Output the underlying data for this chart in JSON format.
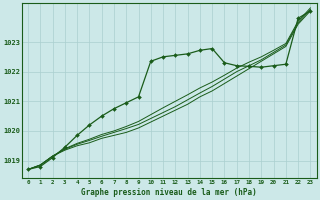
{
  "title": "Graphe pression niveau de la mer (hPa)",
  "bg_color": "#cce8e8",
  "grid_color": "#aacfcf",
  "line_color": "#1a5c1a",
  "x_ticks": [
    0,
    1,
    2,
    3,
    4,
    5,
    6,
    7,
    8,
    9,
    10,
    11,
    12,
    13,
    14,
    15,
    16,
    17,
    18,
    19,
    20,
    21,
    22,
    23
  ],
  "ylim": [
    1018.4,
    1024.3
  ],
  "yticks": [
    1019,
    1020,
    1021,
    1022,
    1023
  ],
  "series_plain": [
    [
      1018.7,
      1018.85,
      1019.15,
      1019.35,
      1019.5,
      1019.6,
      1019.75,
      1019.85,
      1019.95,
      1020.1,
      1020.3,
      1020.5,
      1020.7,
      1020.9,
      1021.15,
      1021.35,
      1021.6,
      1021.85,
      1022.1,
      1022.35,
      1022.6,
      1022.85,
      1023.6,
      1024.05
    ],
    [
      1018.7,
      1018.85,
      1019.15,
      1019.38,
      1019.55,
      1019.68,
      1019.82,
      1019.95,
      1020.08,
      1020.22,
      1020.42,
      1020.62,
      1020.82,
      1021.05,
      1021.28,
      1021.5,
      1021.75,
      1022.0,
      1022.2,
      1022.4,
      1022.65,
      1022.9,
      1023.65,
      1024.1
    ],
    [
      1018.7,
      1018.85,
      1019.15,
      1019.4,
      1019.58,
      1019.72,
      1019.88,
      1020.0,
      1020.15,
      1020.32,
      1020.55,
      1020.78,
      1021.0,
      1021.22,
      1021.45,
      1021.65,
      1021.88,
      1022.12,
      1022.32,
      1022.5,
      1022.72,
      1022.95,
      1023.7,
      1024.15
    ]
  ],
  "series_marked": [
    1018.7,
    1018.8,
    1019.1,
    1019.45,
    1019.85,
    1020.2,
    1020.5,
    1020.75,
    1020.95,
    1021.15,
    1022.35,
    1022.5,
    1022.55,
    1022.6,
    1022.72,
    1022.78,
    1022.3,
    1022.2,
    1022.18,
    1022.15,
    1022.2,
    1022.25,
    1023.8,
    1024.05
  ]
}
